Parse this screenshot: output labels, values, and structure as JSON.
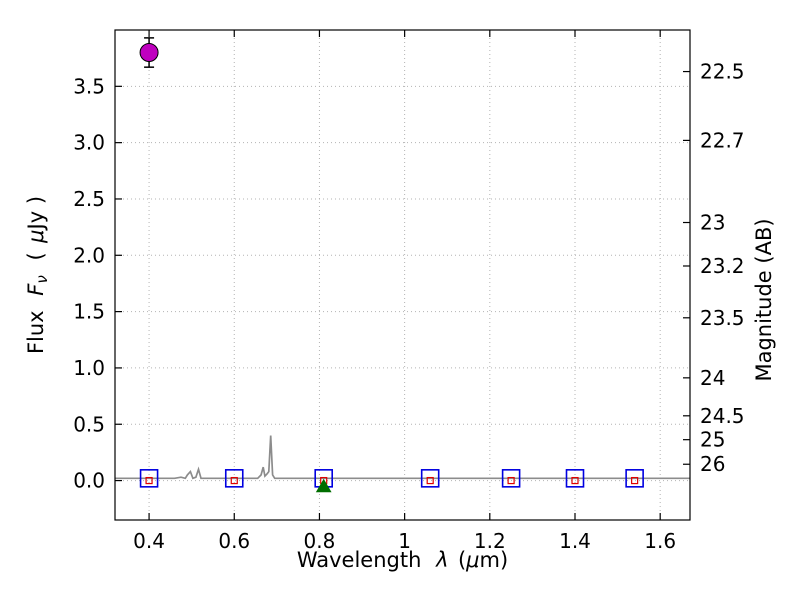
{
  "figure": {
    "xlabel": {
      "prefix": "Wavelength",
      "lambda": "λ",
      "open": "(",
      "mu": "μ",
      "close": "m)"
    },
    "ylabel": {
      "prefix": "Flux",
      "f": "F",
      "nu": "ν",
      "open": "(",
      "mu": "μ",
      "close": "Jy )"
    },
    "y2label": "Magnitude (AB)"
  },
  "chart_data": {
    "type": "scatter",
    "title": "",
    "xlabel": "Wavelength λ (μm)",
    "ylabel": "Flux Fν ( μJy )",
    "y2label": "Magnitude (AB)",
    "xlim": [
      0.32,
      1.67
    ],
    "ylim": [
      -0.35,
      4.0
    ],
    "grid": true,
    "legend": "none",
    "xticks": {
      "values": [
        0.4,
        0.6,
        0.8,
        1.0,
        1.2,
        1.4,
        1.6
      ],
      "labels": [
        "0.4",
        "0.6",
        "0.8",
        "1",
        "1.2",
        "1.4",
        "1.6"
      ]
    },
    "yticks": {
      "values": [
        0.0,
        0.5,
        1.0,
        1.5,
        2.0,
        2.5,
        3.0,
        3.5
      ],
      "labels": [
        "0.0",
        "0.5",
        "1.0",
        "1.5",
        "2.0",
        "2.5",
        "3.0",
        "3.5"
      ]
    },
    "y2ticks": [
      {
        "label": "22.5",
        "flux": 3.631
      },
      {
        "label": "22.7",
        "flux": 3.02
      },
      {
        "label": "23",
        "flux": 2.291
      },
      {
        "label": "23.2",
        "flux": 1.905
      },
      {
        "label": "23.5",
        "flux": 1.445
      },
      {
        "label": "24",
        "flux": 0.912
      },
      {
        "label": "24.5",
        "flux": 0.575
      },
      {
        "label": "25",
        "flux": 0.363
      },
      {
        "label": "26",
        "flux": 0.145
      }
    ],
    "colors": {
      "spectrum": "#8c8c8c",
      "observed": "#bf00bf",
      "errorbar": "#000000",
      "photometry_box": "#0000e0",
      "model_point": "#e00000",
      "upper_limit": "#006e00",
      "grid": "#b3b3b3",
      "axis": "#000000"
    },
    "series": [
      {
        "name": "model-spectrum",
        "type": "line",
        "x": [
          0.32,
          0.46,
          0.475,
          0.485,
          0.49,
          0.497,
          0.503,
          0.51,
          0.516,
          0.522,
          0.53,
          0.6,
          0.655,
          0.663,
          0.668,
          0.672,
          0.677,
          0.681,
          0.6855,
          0.69,
          0.695,
          0.72,
          0.85,
          1.0,
          1.2,
          1.4,
          1.67
        ],
        "y": [
          0.02,
          0.02,
          0.03,
          0.02,
          0.05,
          0.08,
          0.02,
          0.03,
          0.1,
          0.02,
          0.02,
          0.02,
          0.02,
          0.05,
          0.12,
          0.04,
          0.06,
          0.08,
          0.4,
          0.05,
          0.02,
          0.02,
          0.02,
          0.02,
          0.02,
          0.02,
          0.02
        ]
      },
      {
        "name": "observed-flux-point",
        "type": "circle-errorbar",
        "points": [
          {
            "x": 0.4,
            "y": 3.8,
            "yerr": 0.13
          }
        ]
      },
      {
        "name": "photometry-boxes",
        "type": "open-square",
        "points": [
          {
            "x": 0.4,
            "y": 0.02
          },
          {
            "x": 0.6,
            "y": 0.02
          },
          {
            "x": 0.81,
            "y": 0.02
          },
          {
            "x": 1.06,
            "y": 0.02
          },
          {
            "x": 1.25,
            "y": 0.02
          },
          {
            "x": 1.4,
            "y": 0.02
          },
          {
            "x": 1.54,
            "y": 0.02
          }
        ]
      },
      {
        "name": "model-photometry",
        "type": "small-open-square",
        "points": [
          {
            "x": 0.4,
            "y": 0.0
          },
          {
            "x": 0.6,
            "y": 0.0
          },
          {
            "x": 0.81,
            "y": 0.0
          },
          {
            "x": 1.06,
            "y": 0.0
          },
          {
            "x": 1.25,
            "y": 0.0
          },
          {
            "x": 1.4,
            "y": 0.0
          },
          {
            "x": 1.54,
            "y": 0.0
          }
        ]
      },
      {
        "name": "upper-limit-marker",
        "type": "triangle-up",
        "points": [
          {
            "x": 0.81,
            "y": -0.05
          }
        ]
      }
    ]
  }
}
